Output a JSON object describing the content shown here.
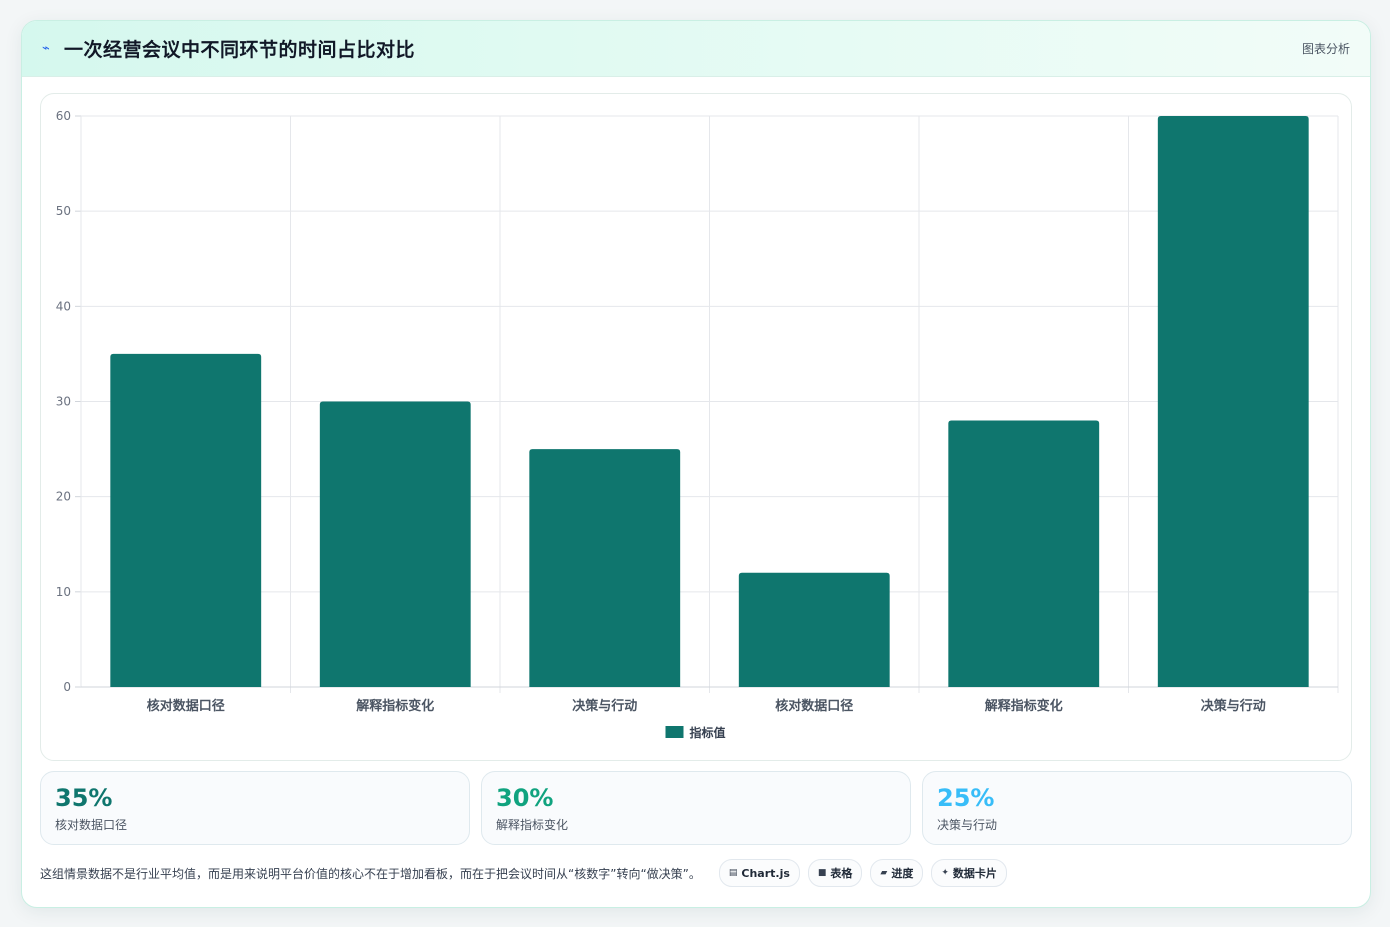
{
  "header": {
    "icon": "lightning-icon",
    "title": "一次经营会议中不同环节的时间占比对比",
    "tag": "图表分析"
  },
  "chart_data": {
    "type": "bar",
    "categories": [
      "核对数据口径",
      "解释指标变化",
      "决策与行动",
      "核对数据口径",
      "解释指标变化",
      "决策与行动"
    ],
    "series": [
      {
        "name": "指标值",
        "values": [
          35,
          30,
          25,
          12,
          28,
          60
        ],
        "color": "#0f766e"
      }
    ],
    "ylim": [
      0,
      60
    ],
    "yticks": [
      0,
      10,
      20,
      30,
      40,
      50,
      60
    ],
    "grid": true,
    "legend": "bottom"
  },
  "stats": [
    {
      "value": "35%",
      "label": "核对数据口径",
      "color": "#0f766e"
    },
    {
      "value": "30%",
      "label": "解释指标变化",
      "color": "#10a37f"
    },
    {
      "value": "25%",
      "label": "决策与行动",
      "color": "#38bdf8"
    }
  ],
  "footer": {
    "text": "这组情景数据不是行业平均值，而是用来说明平台价值的核心不在于增加看板，而在于把会议时间从“核数字”转向“做决策”。",
    "chips": [
      {
        "icon": "chart-icon",
        "glyph": "▤",
        "label": "Chart.js"
      },
      {
        "icon": "table-icon",
        "glyph": "■",
        "label": "表格"
      },
      {
        "icon": "progress-icon",
        "glyph": "▰",
        "label": "进度"
      },
      {
        "icon": "sparkle-icon",
        "glyph": "✦",
        "label": "数据卡片"
      }
    ]
  }
}
